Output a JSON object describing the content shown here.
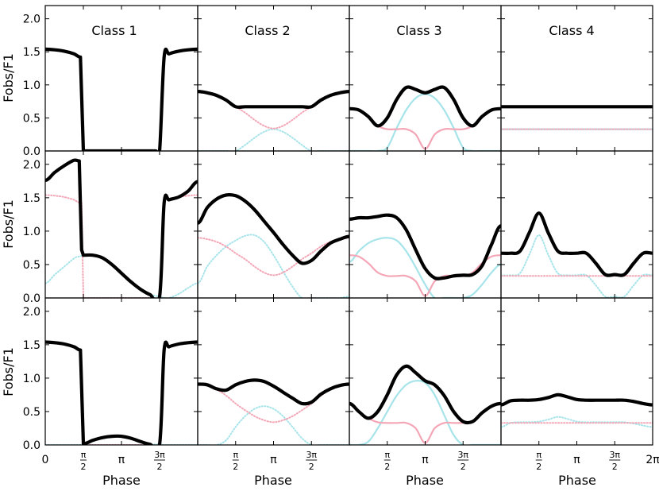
{
  "figure": {
    "xlabel": "Phase",
    "ylabel": "Fobs/F1",
    "xticks": [
      {
        "value": 0,
        "label": "0"
      },
      {
        "value": 1.5708,
        "label": "π/2"
      },
      {
        "value": 3.1416,
        "label": "π"
      },
      {
        "value": 4.7124,
        "label": "3π/2"
      },
      {
        "value": 6.2832,
        "label": "2π"
      }
    ],
    "yticks": [
      "0.0",
      "0.5",
      "1.0",
      "1.5",
      "2.0"
    ],
    "ylim": [
      0,
      2.2
    ],
    "xlim": [
      0,
      6.2832
    ],
    "column_titles": [
      "Class 1",
      "Class 2",
      "Class 3",
      "Class 4"
    ],
    "colors": {
      "total": "#000000",
      "component_1": "#f4a6b6",
      "component_2": "#a6e4ea"
    }
  },
  "chart_data": [
    {
      "type": "line",
      "row": 1,
      "col": 1,
      "title": "Class 1",
      "xlim": [
        0,
        6.2832
      ],
      "ylim": [
        0,
        2.2
      ],
      "x": [
        0,
        0.3927,
        0.7854,
        1.1781,
        1.45,
        1.5708,
        1.6,
        2.3562,
        3.1416,
        3.927,
        4.55,
        4.7124,
        4.9,
        5.1051,
        5.4978,
        5.8905,
        6.2832
      ],
      "series": [
        {
          "role": "total",
          "values": [
            1.54,
            1.53,
            1.51,
            1.47,
            1.42,
            0,
            0,
            0,
            0,
            0,
            0,
            0,
            1.42,
            1.47,
            1.51,
            1.53,
            1.54
          ]
        },
        {
          "role": "component_1",
          "style": "dotted",
          "values": [
            1.54,
            1.53,
            1.51,
            1.47,
            1.42,
            0,
            0,
            0,
            0,
            0,
            0,
            0,
            1.42,
            1.47,
            1.51,
            1.53,
            1.54
          ]
        }
      ]
    },
    {
      "type": "line",
      "row": 1,
      "col": 2,
      "xlim": [
        0,
        6.2832
      ],
      "ylim": [
        0,
        2.2
      ],
      "x": [
        0,
        0.3927,
        0.7854,
        1.1781,
        1.5708,
        1.9635,
        2.3562,
        2.7489,
        3.1416,
        3.5343,
        3.927,
        4.3197,
        4.7124,
        5.1051,
        5.4978,
        5.8905,
        6.2832
      ],
      "series": [
        {
          "role": "total",
          "values": [
            0.9,
            0.88,
            0.84,
            0.77,
            0.67,
            0.67,
            0.67,
            0.67,
            0.67,
            0.67,
            0.67,
            0.67,
            0.67,
            0.77,
            0.84,
            0.88,
            0.9
          ]
        },
        {
          "role": "component_1",
          "style": "dotted",
          "values": [
            0.9,
            0.88,
            0.84,
            0.77,
            0.67,
            0.58,
            0.47,
            0.38,
            0.34,
            0.38,
            0.47,
            0.58,
            0.67,
            0.77,
            0.84,
            0.88,
            0.9
          ]
        },
        {
          "role": "component_2",
          "style": "dotted",
          "values": [
            0,
            0,
            0,
            0,
            0,
            0.09,
            0.2,
            0.29,
            0.33,
            0.29,
            0.2,
            0.09,
            0,
            0,
            0,
            0,
            0
          ]
        }
      ]
    },
    {
      "type": "line",
      "row": 1,
      "col": 3,
      "xlim": [
        0,
        6.2832
      ],
      "ylim": [
        0,
        2.2
      ],
      "x": [
        0,
        0.3927,
        0.7854,
        1.1781,
        1.5708,
        1.9635,
        2.3562,
        2.7489,
        3.1416,
        3.5343,
        3.927,
        4.3197,
        4.7124,
        5.1051,
        5.4978,
        5.8905,
        6.2832
      ],
      "series": [
        {
          "role": "total",
          "values": [
            0.64,
            0.62,
            0.52,
            0.38,
            0.5,
            0.78,
            0.96,
            0.93,
            0.88,
            0.93,
            0.96,
            0.78,
            0.5,
            0.38,
            0.52,
            0.62,
            0.64
          ]
        },
        {
          "role": "component_1",
          "values": [
            0.64,
            0.62,
            0.52,
            0.38,
            0.33,
            0.33,
            0.33,
            0.25,
            0.03,
            0.25,
            0.33,
            0.33,
            0.33,
            0.38,
            0.52,
            0.62,
            0.64
          ]
        },
        {
          "role": "component_2",
          "values": [
            0,
            0,
            0,
            0,
            0.05,
            0.35,
            0.62,
            0.8,
            0.86,
            0.8,
            0.62,
            0.35,
            0.05,
            0,
            0,
            0,
            0
          ]
        }
      ]
    },
    {
      "type": "line",
      "row": 1,
      "col": 4,
      "xlim": [
        0,
        6.2832
      ],
      "ylim": [
        0,
        2.2
      ],
      "x": [
        0,
        6.2832
      ],
      "series": [
        {
          "role": "total",
          "values": [
            0.67,
            0.67
          ]
        },
        {
          "role": "component_1",
          "style": "dotted",
          "values": [
            0.33,
            0.33
          ]
        },
        {
          "role": "component_2",
          "values": [
            0.33,
            0.33
          ]
        }
      ]
    },
    {
      "type": "line",
      "row": 2,
      "col": 1,
      "xlim": [
        0,
        6.2832
      ],
      "ylim": [
        0,
        2.2
      ],
      "x": [
        0,
        0.3927,
        0.7854,
        1.1781,
        1.4,
        1.5,
        1.5708,
        1.9635,
        2.3562,
        2.7489,
        3.1416,
        3.5343,
        3.927,
        4.3197,
        4.7124,
        4.9,
        5.1051,
        5.4978,
        5.8905,
        6.2832
      ],
      "series": [
        {
          "role": "total",
          "values": [
            1.76,
            1.88,
            1.98,
            2.06,
            2.05,
            0.72,
            0.64,
            0.64,
            0.6,
            0.5,
            0.37,
            0.24,
            0.13,
            0.05,
            0.02,
            1.42,
            1.47,
            1.51,
            1.6,
            1.74
          ]
        },
        {
          "role": "component_1",
          "style": "dotted",
          "values": [
            1.54,
            1.53,
            1.51,
            1.47,
            1.43,
            1.42,
            0,
            0,
            0,
            0,
            0,
            0,
            0,
            0,
            0,
            1.42,
            1.47,
            1.51,
            1.53,
            1.54
          ]
        },
        {
          "role": "component_2",
          "style": "dotted",
          "values": [
            0.22,
            0.35,
            0.47,
            0.59,
            0.62,
            0.63,
            0.64,
            0.64,
            0.6,
            0.5,
            0.37,
            0.24,
            0.13,
            0.05,
            0.02,
            0,
            0,
            0.06,
            0.15,
            0.22
          ]
        }
      ]
    },
    {
      "type": "line",
      "row": 2,
      "col": 2,
      "xlim": [
        0,
        6.2832
      ],
      "ylim": [
        0,
        2.2
      ],
      "x": [
        0,
        0.3927,
        0.7854,
        1.1781,
        1.5708,
        1.9635,
        2.3562,
        2.7489,
        3.1416,
        3.5343,
        3.927,
        4.3197,
        4.7124,
        5.1051,
        5.4978,
        5.8905,
        6.2832
      ],
      "series": [
        {
          "role": "total",
          "values": [
            1.12,
            1.35,
            1.48,
            1.54,
            1.53,
            1.45,
            1.32,
            1.15,
            0.98,
            0.8,
            0.64,
            0.52,
            0.56,
            0.7,
            0.82,
            0.88,
            0.92
          ]
        },
        {
          "role": "component_1",
          "style": "dotted",
          "values": [
            0.9,
            0.88,
            0.84,
            0.77,
            0.67,
            0.58,
            0.47,
            0.38,
            0.34,
            0.38,
            0.47,
            0.58,
            0.67,
            0.77,
            0.84,
            0.88,
            0.9
          ]
        },
        {
          "role": "component_2",
          "style": "dotted",
          "values": [
            0.22,
            0.47,
            0.64,
            0.77,
            0.86,
            0.93,
            0.94,
            0.84,
            0.64,
            0.4,
            0.17,
            0,
            0,
            0,
            0,
            0,
            0.02
          ]
        }
      ]
    },
    {
      "type": "line",
      "row": 2,
      "col": 3,
      "xlim": [
        0,
        6.2832
      ],
      "ylim": [
        0,
        2.2
      ],
      "x": [
        0,
        0.3927,
        0.7854,
        1.1781,
        1.5708,
        1.9635,
        2.3562,
        2.7489,
        3.1416,
        3.5343,
        3.927,
        4.3197,
        4.7124,
        5.1051,
        5.4978,
        5.8905,
        6.2832
      ],
      "series": [
        {
          "role": "total",
          "values": [
            1.18,
            1.2,
            1.2,
            1.22,
            1.24,
            1.2,
            1.02,
            0.72,
            0.44,
            0.3,
            0.3,
            0.33,
            0.34,
            0.35,
            0.48,
            0.8,
            1.08
          ]
        },
        {
          "role": "component_1",
          "values": [
            0.64,
            0.62,
            0.52,
            0.38,
            0.33,
            0.33,
            0.33,
            0.25,
            0.03,
            0.25,
            0.33,
            0.33,
            0.33,
            0.38,
            0.52,
            0.62,
            0.64
          ]
        },
        {
          "role": "component_2",
          "values": [
            0.54,
            0.7,
            0.82,
            0.88,
            0.9,
            0.86,
            0.7,
            0.46,
            0.2,
            0,
            0,
            0,
            0,
            0.05,
            0.2,
            0.38,
            0.5
          ]
        }
      ]
    },
    {
      "type": "line",
      "row": 2,
      "col": 4,
      "xlim": [
        0,
        6.2832
      ],
      "ylim": [
        0,
        2.2
      ],
      "x": [
        0,
        0.3927,
        0.7854,
        1.1781,
        1.5708,
        1.9635,
        2.3562,
        2.7489,
        3.1416,
        3.5343,
        3.927,
        4.3197,
        4.7124,
        5.1051,
        5.4978,
        5.8905,
        6.2832
      ],
      "series": [
        {
          "role": "total",
          "values": [
            0.67,
            0.67,
            0.7,
            0.98,
            1.27,
            0.97,
            0.7,
            0.67,
            0.67,
            0.67,
            0.52,
            0.35,
            0.35,
            0.35,
            0.52,
            0.67,
            0.67
          ]
        },
        {
          "role": "component_1",
          "style": "dotted",
          "values": [
            0.33,
            0.33,
            0.33,
            0.33,
            0.33,
            0.33,
            0.33,
            0.33,
            0.33,
            0.33,
            0.33,
            0.33,
            0.33,
            0.33,
            0.33,
            0.33,
            0.33
          ]
        },
        {
          "role": "component_2",
          "style": "dotted",
          "values": [
            0.34,
            0.34,
            0.37,
            0.65,
            0.94,
            0.64,
            0.37,
            0.34,
            0.34,
            0.34,
            0.19,
            0.02,
            0.02,
            0.02,
            0.19,
            0.34,
            0.34
          ]
        }
      ]
    },
    {
      "type": "line",
      "row": 3,
      "col": 1,
      "xlim": [
        0,
        6.2832
      ],
      "ylim": [
        0,
        2.2
      ],
      "x": [
        0,
        0.3927,
        0.7854,
        1.1781,
        1.45,
        1.5708,
        1.6,
        1.9635,
        2.3562,
        2.7489,
        3.1416,
        3.5343,
        3.927,
        4.3197,
        4.7124,
        4.9,
        5.1051,
        5.4978,
        5.8905,
        6.2832
      ],
      "series": [
        {
          "role": "total",
          "values": [
            1.54,
            1.53,
            1.51,
            1.47,
            1.42,
            0.02,
            0.02,
            0.07,
            0.11,
            0.13,
            0.13,
            0.1,
            0.05,
            0.01,
            0.01,
            1.42,
            1.47,
            1.51,
            1.53,
            1.54
          ]
        },
        {
          "role": "component_1",
          "style": "dotted",
          "values": [
            1.54,
            1.53,
            1.51,
            1.47,
            1.42,
            0,
            0,
            0,
            0,
            0,
            0,
            0,
            0,
            0,
            0,
            1.42,
            1.47,
            1.51,
            1.53,
            1.54
          ]
        },
        {
          "role": "component_2",
          "style": "dotted",
          "values": [
            0,
            0,
            0,
            0,
            0,
            0.02,
            0.02,
            0.07,
            0.11,
            0.13,
            0.13,
            0.1,
            0.05,
            0.01,
            0.01,
            0,
            0,
            0,
            0,
            0
          ]
        }
      ]
    },
    {
      "type": "line",
      "row": 3,
      "col": 2,
      "xlim": [
        0,
        6.2832
      ],
      "ylim": [
        0,
        2.2
      ],
      "x": [
        0,
        0.3927,
        0.7854,
        1.1781,
        1.5708,
        1.9635,
        2.3562,
        2.7489,
        3.1416,
        3.5343,
        3.927,
        4.3197,
        4.7124,
        5.1051,
        5.4978,
        5.8905,
        6.2832
      ],
      "series": [
        {
          "role": "total",
          "values": [
            0.91,
            0.9,
            0.84,
            0.82,
            0.9,
            0.95,
            0.97,
            0.95,
            0.88,
            0.79,
            0.7,
            0.62,
            0.64,
            0.76,
            0.84,
            0.89,
            0.91
          ]
        },
        {
          "role": "component_1",
          "style": "dotted",
          "values": [
            0.91,
            0.89,
            0.83,
            0.74,
            0.62,
            0.52,
            0.43,
            0.37,
            0.34,
            0.37,
            0.43,
            0.52,
            0.62,
            0.74,
            0.83,
            0.89,
            0.91
          ]
        },
        {
          "role": "component_2",
          "style": "dotted",
          "values": [
            0,
            0,
            0,
            0.07,
            0.27,
            0.43,
            0.54,
            0.58,
            0.54,
            0.43,
            0.27,
            0.1,
            0,
            0,
            0,
            0,
            0
          ]
        }
      ]
    },
    {
      "type": "line",
      "row": 3,
      "col": 3,
      "xlim": [
        0,
        6.2832
      ],
      "ylim": [
        0,
        2.2
      ],
      "x": [
        0,
        0.3927,
        0.7854,
        1.1781,
        1.5708,
        1.9635,
        2.3562,
        2.7489,
        3.1416,
        3.5343,
        3.927,
        4.3197,
        4.7124,
        5.1051,
        5.4978,
        5.8905,
        6.2832
      ],
      "series": [
        {
          "role": "total",
          "values": [
            0.62,
            0.5,
            0.4,
            0.5,
            0.75,
            1.05,
            1.18,
            1.08,
            0.96,
            0.9,
            0.74,
            0.5,
            0.35,
            0.35,
            0.48,
            0.58,
            0.62
          ]
        },
        {
          "role": "component_1",
          "values": [
            0.62,
            0.5,
            0.4,
            0.34,
            0.33,
            0.33,
            0.33,
            0.25,
            0.03,
            0.25,
            0.33,
            0.33,
            0.33,
            0.35,
            0.48,
            0.58,
            0.62
          ]
        },
        {
          "role": "component_2",
          "values": [
            0,
            0,
            0.05,
            0.25,
            0.5,
            0.74,
            0.9,
            0.96,
            0.93,
            0.75,
            0.45,
            0.15,
            0,
            0,
            0,
            0,
            0
          ]
        }
      ]
    },
    {
      "type": "line",
      "row": 3,
      "col": 4,
      "xlim": [
        0,
        6.2832
      ],
      "ylim": [
        0,
        2.2
      ],
      "x": [
        0,
        0.3927,
        0.7854,
        1.1781,
        1.5708,
        1.9635,
        2.3562,
        2.7489,
        3.1416,
        3.5343,
        3.927,
        4.3197,
        4.7124,
        5.1051,
        5.4978,
        5.8905,
        6.2832
      ],
      "series": [
        {
          "role": "total",
          "values": [
            0.6,
            0.66,
            0.67,
            0.67,
            0.68,
            0.71,
            0.75,
            0.72,
            0.68,
            0.67,
            0.67,
            0.67,
            0.67,
            0.67,
            0.65,
            0.62,
            0.6
          ]
        },
        {
          "role": "component_1",
          "style": "dotted",
          "values": [
            0.33,
            0.33,
            0.33,
            0.33,
            0.33,
            0.33,
            0.33,
            0.33,
            0.33,
            0.33,
            0.33,
            0.33,
            0.33,
            0.33,
            0.33,
            0.33,
            0.33
          ]
        },
        {
          "role": "component_2",
          "style": "dotted",
          "values": [
            0.27,
            0.33,
            0.34,
            0.34,
            0.35,
            0.38,
            0.42,
            0.39,
            0.35,
            0.34,
            0.34,
            0.34,
            0.34,
            0.34,
            0.32,
            0.29,
            0.27
          ]
        }
      ]
    }
  ]
}
